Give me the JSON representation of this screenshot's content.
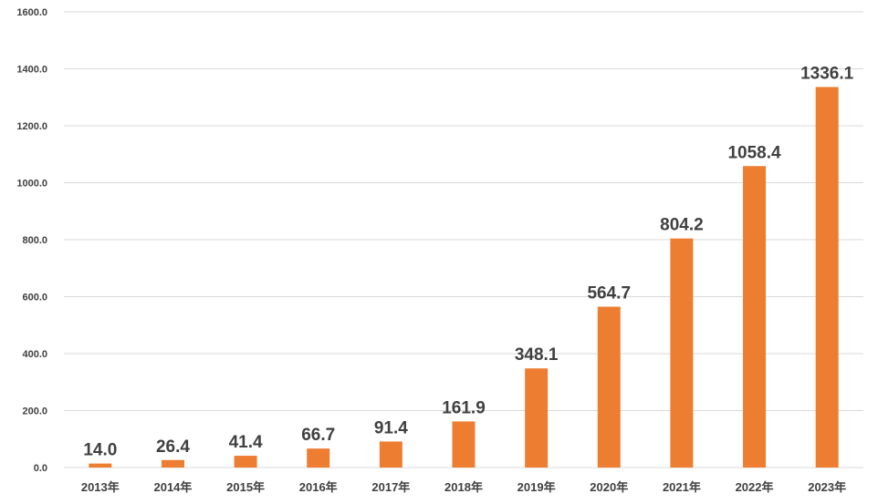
{
  "chart_data": {
    "type": "bar",
    "categories": [
      "2013年",
      "2014年",
      "2015年",
      "2016年",
      "2017年",
      "2018年",
      "2019年",
      "2020年",
      "2021年",
      "2022年",
      "2023年"
    ],
    "values": [
      14.0,
      26.4,
      41.4,
      66.7,
      91.4,
      161.9,
      348.1,
      564.7,
      804.2,
      1058.4,
      1336.1
    ],
    "data_labels": [
      "14.0",
      "26.4",
      "41.4",
      "66.7",
      "91.4",
      "161.9",
      "348.1",
      "564.7",
      "804.2",
      "1058.4",
      "1336.1"
    ],
    "y_ticks": [
      0,
      200,
      400,
      600,
      800,
      1000,
      1200,
      1400,
      1600
    ],
    "y_tick_labels": [
      "0.0",
      "200.0",
      "400.0",
      "600.0",
      "800.0",
      "1000.0",
      "1200.0",
      "1400.0",
      "1600.0"
    ],
    "ylim": [
      0,
      1600
    ],
    "grid": true,
    "bar_color": "#ed7d31",
    "title": "",
    "xlabel": "",
    "ylabel": ""
  }
}
